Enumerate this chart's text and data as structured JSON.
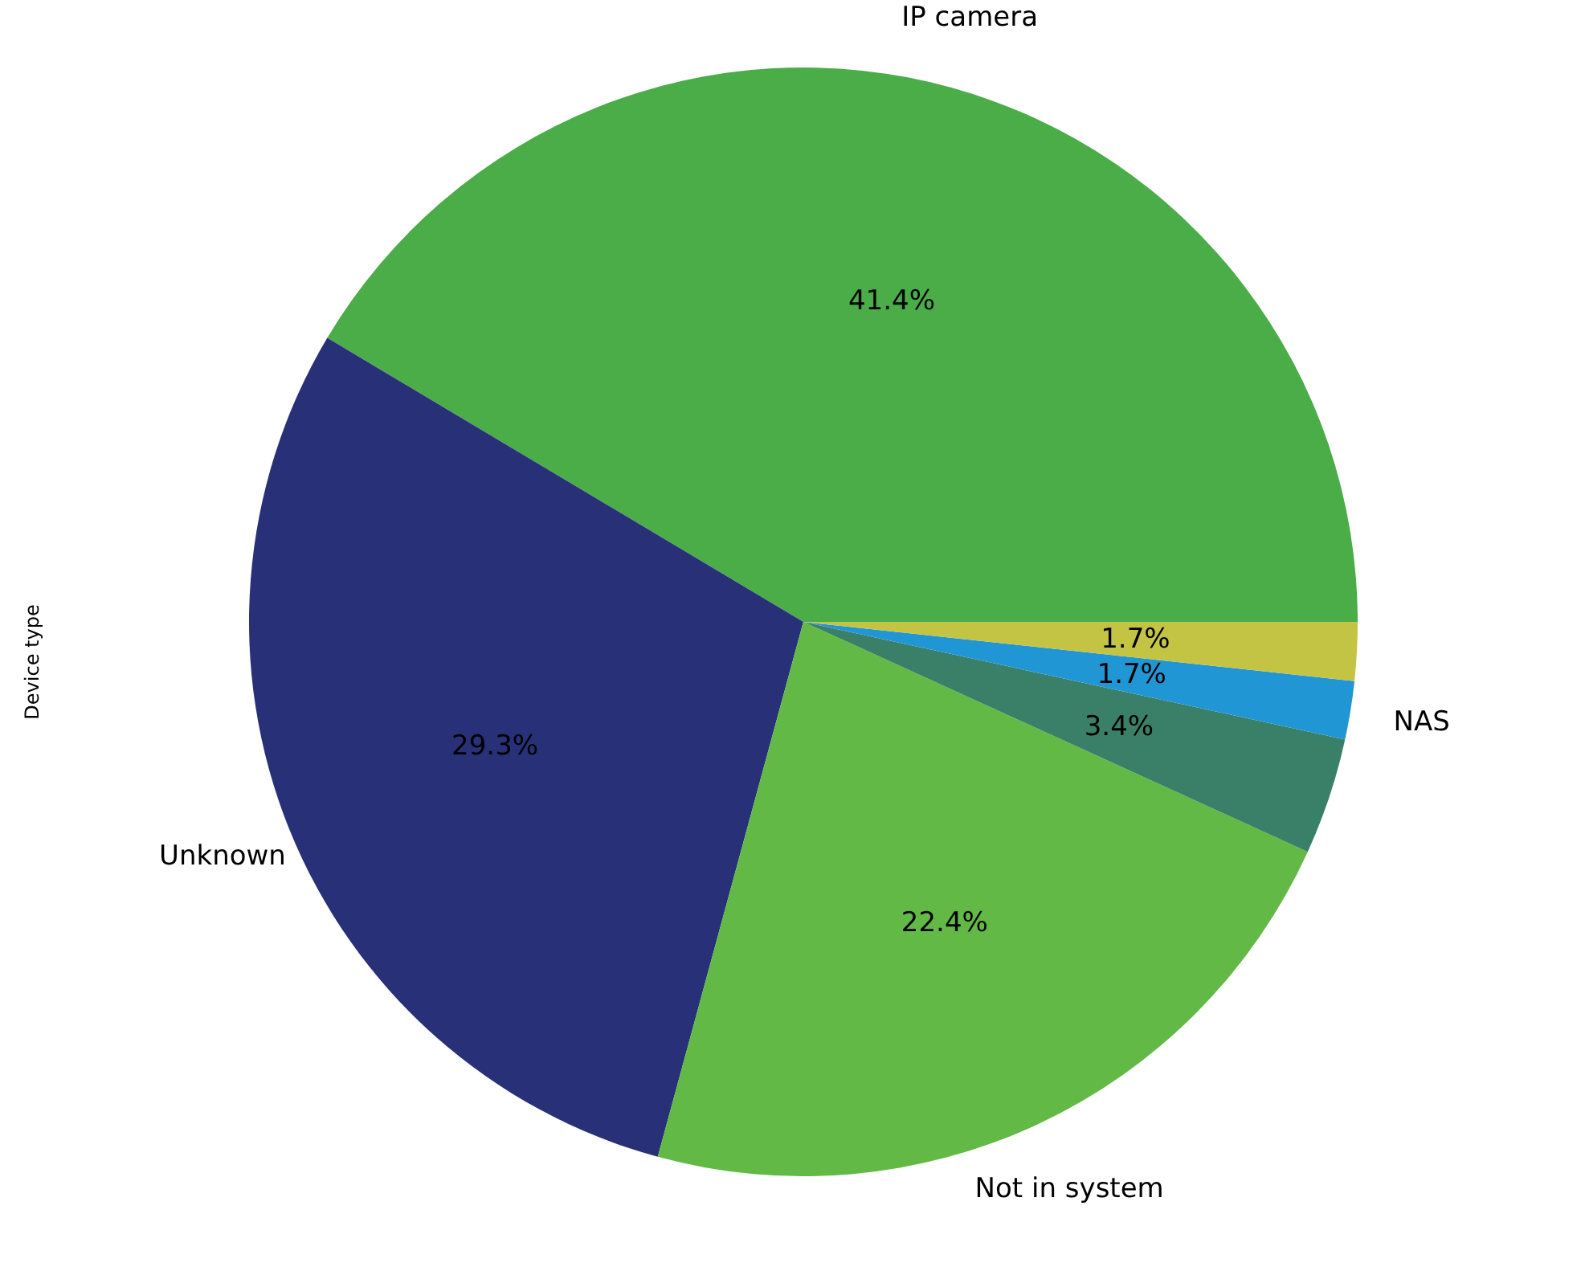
{
  "chart_data": {
    "type": "pie",
    "ylabel": "Device type",
    "categories": [
      "IP camera",
      "Unknown",
      "Not in system",
      null,
      "NAS",
      null
    ],
    "values": [
      41.4,
      29.3,
      22.4,
      3.4,
      1.7,
      1.7
    ],
    "value_labels": [
      "41.4%",
      "29.3%",
      "22.4%",
      "3.4%",
      "1.7%",
      "1.7%"
    ],
    "colors": [
      "#4aad48",
      "#283178",
      "#63b946",
      "#3a8068",
      "#2196d5",
      "#c3c444"
    ]
  }
}
